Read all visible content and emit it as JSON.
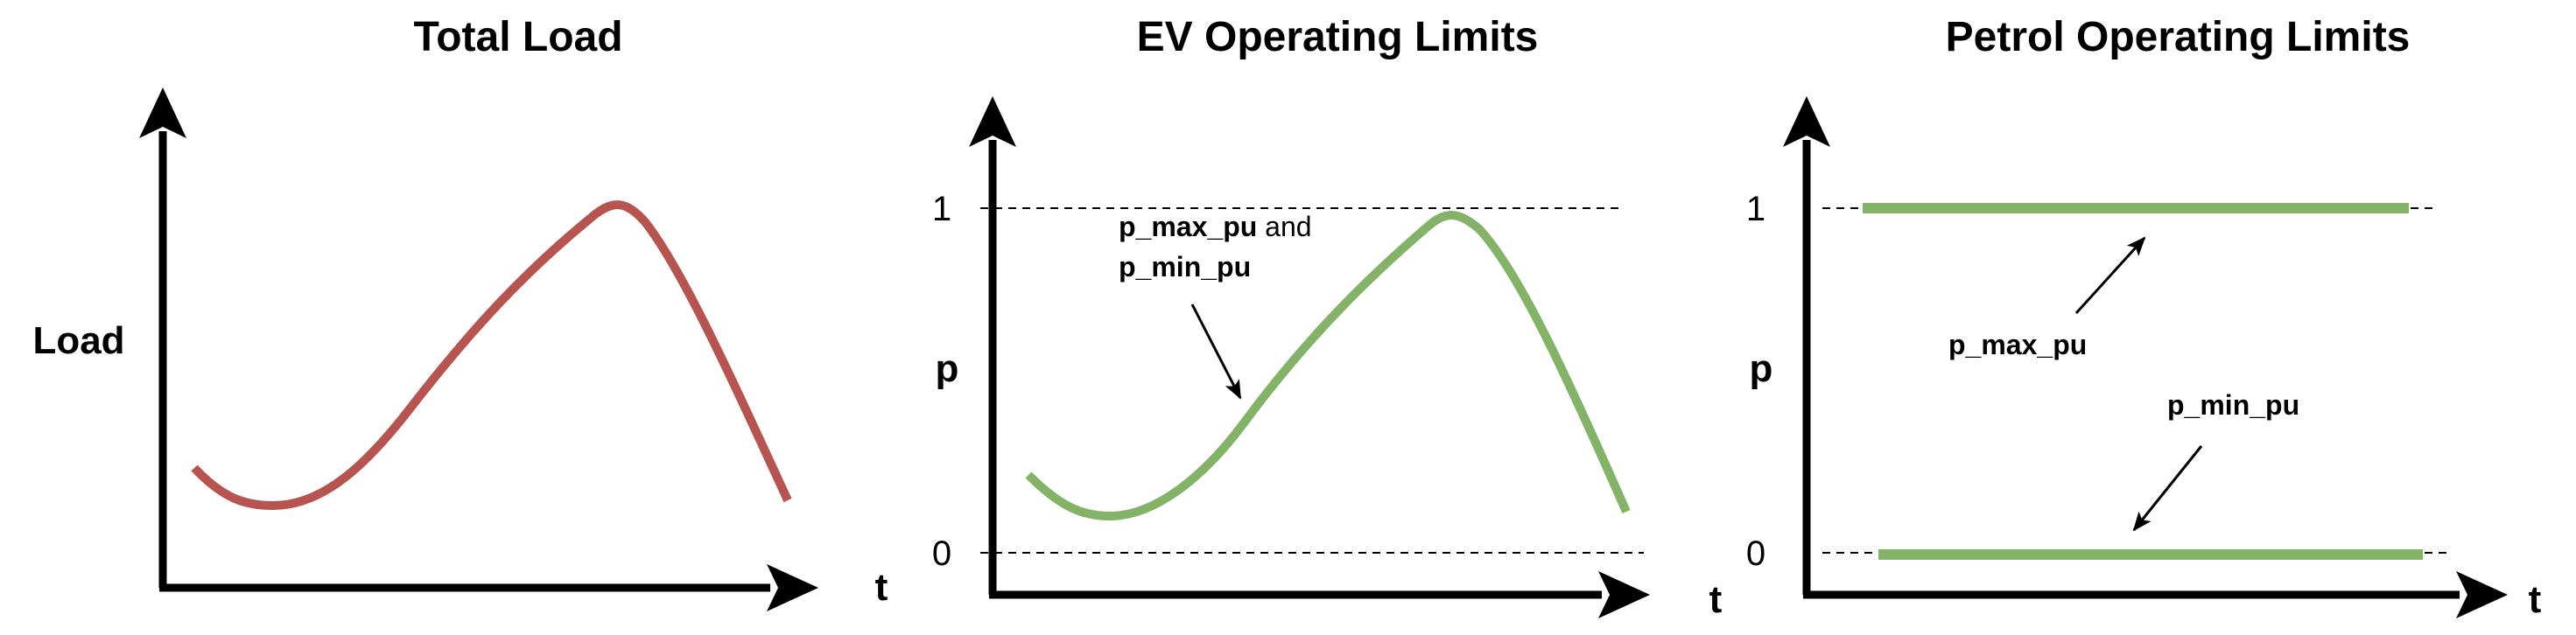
{
  "colors": {
    "axis": "#000000",
    "load_curve": "#b85450",
    "ev_curve": "#82b366",
    "petrol_lines": "#82b366",
    "dashed": "#000000"
  },
  "panels": {
    "total_load": {
      "title": "Total Load",
      "y_label": "Load",
      "x_label": "t"
    },
    "ev": {
      "title": "EV Operating Limits",
      "y_label": "p",
      "x_label": "t",
      "tick_top": "1",
      "tick_bottom": "0",
      "annotation_line1_bold": "p_max_pu",
      "annotation_line1_rest": " and",
      "annotation_line2_bold": "p_min_pu"
    },
    "petrol": {
      "title": "Petrol Operating Limits",
      "y_label": "p",
      "x_label": "t",
      "tick_top": "1",
      "tick_bottom": "0",
      "max_label": "p_max_pu",
      "min_label": "p_min_pu"
    }
  },
  "chart_data": [
    {
      "type": "line",
      "title": "Total Load",
      "ylabel": "Load",
      "xlabel": "t",
      "series": [
        {
          "values_shape": "rises-to-peak-then-falls"
        }
      ]
    },
    {
      "type": "line",
      "title": "EV Operating Limits",
      "ylabel": "p",
      "xlabel": "t",
      "yticks": [
        "0",
        "1"
      ],
      "ylim": [
        0,
        1
      ],
      "series": [
        {
          "values_shape": "rises-to-peak-then-falls",
          "peak": 1
        }
      ]
    },
    {
      "type": "line",
      "title": "Petrol Operating Limits",
      "ylabel": "p",
      "xlabel": "t",
      "yticks": [
        "0",
        "1"
      ],
      "ylim": [
        0,
        1
      ],
      "series": [
        {
          "name": "p_max_pu",
          "constant": 1
        },
        {
          "name": "p_min_pu",
          "constant": 0
        }
      ]
    }
  ]
}
